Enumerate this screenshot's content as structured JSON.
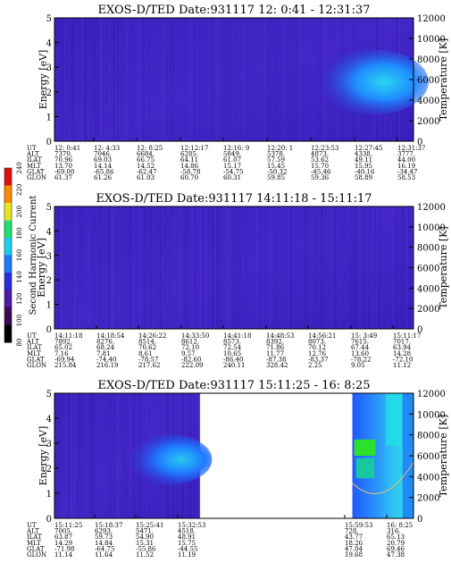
{
  "chart_data": [
    {
      "type": "heatmap",
      "title": "EXOS-D/TED   Date:931117  12: 0:41 - 12:31:37",
      "ylabel": "Energy [eV]",
      "ylim": [
        0,
        5
      ],
      "yticks": [
        "0",
        "1",
        "2",
        "3",
        "4",
        "5"
      ],
      "y2label": "Temperature [K]",
      "y2lim": [
        0,
        12000
      ],
      "y2ticks": [
        "0",
        "2000",
        "4000",
        "6000",
        "8000",
        "10000",
        "12000"
      ],
      "table": {
        "labels": [
          "UT",
          "ALT",
          "ILAT",
          "MLT",
          "GLAT",
          "GLON"
        ],
        "columns": [
          [
            "12: 0:41",
            "7370.",
            "70.96",
            "13.70",
            "-69.00",
            "61.37"
          ],
          [
            "12: 4:33",
            "7046.",
            "69.03",
            "14.14",
            "-65.86",
            "61.26"
          ],
          [
            "12: 8:25",
            "6684.",
            "66.75",
            "14.52",
            "-62.47",
            "61.03"
          ],
          [
            "12:12:17",
            "6285.",
            "64.11",
            "14.86",
            "-58.78",
            "60.70"
          ],
          [
            "12:16: 9",
            "5849.",
            "61.07",
            "15.17",
            "-54.75",
            "60.31"
          ],
          [
            "12:20: 1",
            "5378.",
            "57.59",
            "15.45",
            "-50.32",
            "59.85"
          ],
          [
            "12:23:53",
            "4873.",
            "53.62",
            "15.70",
            "-45.46",
            "59.36"
          ],
          [
            "12:27:45",
            "4338.",
            "49.11",
            "15.95",
            "-40.16",
            "58.89"
          ],
          [
            "12:31:37",
            "3777.",
            "44.00",
            "16.19",
            "-34.47",
            "58.53"
          ]
        ]
      },
      "data_segments": [
        [
          0,
          1
        ]
      ],
      "features": [
        {
          "x_range": [
            0.72,
            1.0
          ],
          "y_range": [
            1.3,
            3.5
          ],
          "level": "medium-high"
        }
      ]
    },
    {
      "type": "heatmap",
      "title": "EXOS-D/TED   Date:931117  14:11:18 - 15:11:17",
      "ylabel": "Energy [eV]",
      "ylim": [
        0,
        5
      ],
      "yticks": [
        "0",
        "1",
        "2",
        "3",
        "4",
        "5"
      ],
      "y2label": "Temperature [K]",
      "y2lim": [
        0,
        12000
      ],
      "y2ticks": [
        "0",
        "2000",
        "4000",
        "6000",
        "8000",
        "10000",
        "12000"
      ],
      "table": {
        "labels": [
          "UT",
          "ALT",
          "ILAT",
          "MLT",
          "GLAT",
          "GLON"
        ],
        "columns": [
          [
            "14:11:18",
            "7892.",
            "65.02",
            "7.16",
            "-69.94",
            "215.84"
          ],
          [
            "14:18:54",
            "8276.",
            "68.24",
            "7.81",
            "-74.40",
            "216.19"
          ],
          [
            "14:26:22",
            "8514.",
            "70.62",
            "8.61",
            "-78.57",
            "217.62"
          ],
          [
            "14:33:50",
            "8612.",
            "72.10",
            "9.57",
            "-82.60",
            "222.09"
          ],
          [
            "14:41:18",
            "8573.",
            "72.54",
            "10.65",
            "-86.40",
            "240.11"
          ],
          [
            "14:48:53",
            "8392.",
            "71.86",
            "11.77",
            "-87.38",
            "328.42"
          ],
          [
            "14:56:21",
            "8073.",
            "70.12",
            "12.76",
            "-83.37",
            "2.25"
          ],
          [
            "15: 3:49",
            "7615.",
            "67.44",
            "13.60",
            "-78.22",
            "9.05"
          ],
          [
            "15:11:17",
            "7017.",
            "63.94",
            "14.28",
            "-72.10",
            "11.12"
          ]
        ]
      },
      "data_segments": [
        [
          0,
          1
        ]
      ],
      "features": []
    },
    {
      "type": "heatmap",
      "title": "EXOS-D/TED   Date:931117  15:11:25 - 16: 8:25",
      "ylabel": "Energy [eV]",
      "ylim": [
        0,
        5
      ],
      "yticks": [
        "0",
        "1",
        "2",
        "3",
        "4",
        "5"
      ],
      "y2label": "Temperature [K]",
      "y2lim": [
        0,
        12000
      ],
      "y2ticks": [
        "0",
        "2000",
        "4000",
        "6000",
        "8000",
        "10000",
        "12000"
      ],
      "table": {
        "labels": [
          "UT",
          "ALT",
          "ILAT",
          "MLT",
          "GLAT",
          "GLON"
        ],
        "columns": [
          [
            "15:11:25",
            "7005.",
            "63.87",
            "14.29",
            "-71.98",
            "11.14"
          ],
          [
            "15:18:37",
            "6293.",
            "59.73",
            "14.84",
            "-64.75",
            "11.64"
          ],
          [
            "15:25:41",
            "5471.",
            "54.90",
            "15.31",
            "-55.86",
            "11.52"
          ],
          [
            "15:32:53",
            "4518.",
            "48.91",
            "15.75",
            "-44.55",
            "11.19"
          ],
          [
            "15:59:53",
            "728.",
            "43.77",
            "18.26",
            "47.04",
            "19.68"
          ],
          [
            "16: 8:25",
            "316.",
            "65.13",
            "20.79",
            "69.46",
            "47.38"
          ]
        ]
      },
      "data_segments": [
        [
          0,
          0.405
        ],
        [
          0.83,
          1
        ]
      ],
      "features": [
        {
          "x_range": [
            0.18,
            0.405
          ],
          "y_range": [
            1.5,
            3.2
          ],
          "level": "medium"
        },
        {
          "x_range": [
            0.83,
            1.0
          ],
          "y_range": [
            0,
            5
          ],
          "level": "high"
        }
      ]
    }
  ],
  "colorbar": {
    "label": "Second Harmonic Current",
    "ticks": [
      "80",
      "100",
      "120",
      "140",
      "160",
      "180",
      "200",
      "220",
      "240"
    ],
    "colors": [
      "#000000",
      "#3a0a52",
      "#4b1aa8",
      "#2a2ae0",
      "#1e7aff",
      "#18d0f0",
      "#20e070",
      "#e8e820",
      "#ff8a00",
      "#e01010"
    ]
  },
  "colors": {
    "background": "#3b23c2",
    "accent_cyan": "#2ad6f0",
    "accent_green": "#2ce02c"
  }
}
